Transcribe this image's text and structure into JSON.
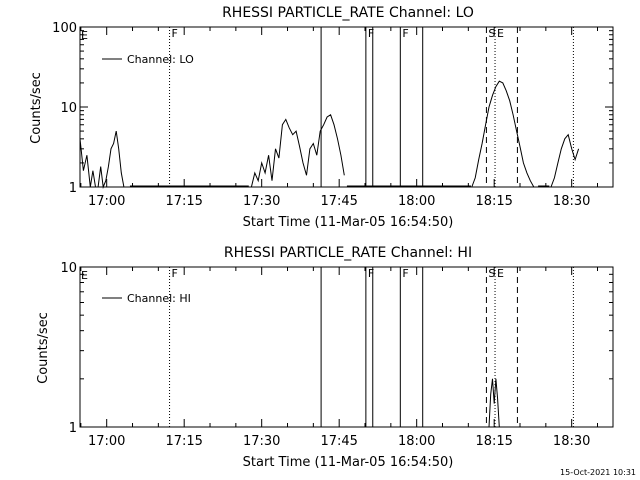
{
  "footer": {
    "timestamp": "15-Oct-2021 10:31"
  },
  "chart_data": [
    {
      "type": "line",
      "title": "RHESSI PARTICLE_RATE Channel: LO",
      "xlabel": "Start Time (11-Mar-05 16:54:50)",
      "ylabel": "Counts/sec",
      "yscale": "log",
      "ylim": [
        1,
        100
      ],
      "ytick_labels": [
        "1",
        "10",
        "100"
      ],
      "ytick_values": [
        1,
        10,
        100
      ],
      "xlim": [
        "16:54:50",
        "18:38:00"
      ],
      "xtick_labels": [
        "17:00",
        "17:15",
        "17:30",
        "17:45",
        "18:00",
        "18:15",
        "18:30"
      ],
      "xtick_values": [
        "17:00",
        "17:15",
        "17:30",
        "17:45",
        "18:00",
        "18:15",
        "18:30"
      ],
      "legend": {
        "label": "Channel: LO",
        "position": "top-left"
      },
      "series": [
        {
          "name": "Channel: LO",
          "x": [
            "16:54:50",
            "16:55:30",
            "16:56:10",
            "16:56:50",
            "16:57:20",
            "16:57:50",
            "16:58:20",
            "16:58:50",
            "16:59:20",
            "16:59:50",
            "17:00:20",
            "17:00:50",
            "17:01:20",
            "17:01:50",
            "17:02:20",
            "17:02:50",
            "17:03:20",
            "17:03:50",
            "17:04:30",
            "17:05:10",
            "17:05:50",
            "17:28:00",
            "17:28:40",
            "17:29:20",
            "17:30:00",
            "17:30:40",
            "17:31:20",
            "17:32:00",
            "17:32:40",
            "17:33:20",
            "17:34:00",
            "17:34:40",
            "17:35:20",
            "17:36:00",
            "17:36:40",
            "17:37:20",
            "17:38:00",
            "17:38:40",
            "17:39:20",
            "17:40:00",
            "17:40:40",
            "17:41:20",
            "17:42:00",
            "17:42:40",
            "17:43:20",
            "17:44:00",
            "17:44:40",
            "17:45:20",
            "17:46:00",
            "18:10:40",
            "18:11:20",
            "18:12:00",
            "18:12:40",
            "18:13:20",
            "18:14:00",
            "18:14:40",
            "18:15:20",
            "18:16:00",
            "18:16:40",
            "18:17:20",
            "18:18:00",
            "18:18:40",
            "18:19:20",
            "18:20:00",
            "18:20:40",
            "18:21:20",
            "18:22:00",
            "18:22:40",
            "18:23:20",
            "18:26:00",
            "18:26:40",
            "18:27:20",
            "18:28:00",
            "18:28:40",
            "18:29:20",
            "18:30:00",
            "18:30:40",
            "18:31:20"
          ],
          "y": [
            4,
            1.6,
            2.5,
            1,
            1.6,
            1,
            1,
            1.8,
            1,
            1.2,
            1.8,
            3,
            3.5,
            5,
            3,
            1.5,
            1,
            1,
            1,
            1,
            1,
            1,
            1.5,
            1.2,
            2,
            1.5,
            2.5,
            1.2,
            3,
            2.3,
            6,
            7,
            5.5,
            4.5,
            5,
            3.2,
            2,
            1.4,
            3,
            3.5,
            2.5,
            5,
            6,
            7.5,
            8,
            6,
            4,
            2.5,
            1.4,
            1,
            1.3,
            2.2,
            3.5,
            6,
            10,
            14,
            18,
            21,
            20,
            16,
            12,
            8,
            5,
            3.2,
            2,
            1.5,
            1.2,
            1,
            1,
            1,
            1.3,
            2,
            3,
            4,
            4.5,
            3,
            2.2,
            3
          ],
          "floor_segments": [
            [
              "17:04:30",
              "17:27:30"
            ],
            [
              "17:46:30",
              "18:10:30"
            ],
            [
              "18:23:30",
              "18:25:40"
            ]
          ]
        }
      ],
      "vertical_lines": [
        {
          "time": "17:12:10",
          "style": "dotted",
          "label": "F"
        },
        {
          "time": "17:41:30",
          "style": "solid",
          "label": ""
        },
        {
          "time": "17:50:10",
          "style": "solid",
          "label": "F"
        },
        {
          "time": "17:51:30",
          "style": "solid",
          "label": ""
        },
        {
          "time": "17:56:50",
          "style": "solid",
          "label": "F"
        },
        {
          "time": "18:01:10",
          "style": "solid",
          "label": ""
        },
        {
          "time": "18:13:30",
          "style": "dashed",
          "label": "S"
        },
        {
          "time": "18:15:10",
          "style": "dotted",
          "label": "E"
        },
        {
          "time": "18:19:30",
          "style": "dashed",
          "label": ""
        },
        {
          "time": "18:30:20",
          "style": "dotted",
          "label": ""
        }
      ],
      "start_marker": "E"
    },
    {
      "type": "line",
      "title": "RHESSI PARTICLE_RATE Channel: HI",
      "xlabel": "Start Time (11-Mar-05 16:54:50)",
      "ylabel": "Counts/sec",
      "yscale": "log",
      "ylim": [
        1,
        10
      ],
      "ytick_labels": [
        "1",
        "10"
      ],
      "ytick_values": [
        1,
        10
      ],
      "xlim": [
        "16:54:50",
        "18:38:00"
      ],
      "xtick_labels": [
        "17:00",
        "17:15",
        "17:30",
        "17:45",
        "18:00",
        "18:15",
        "18:30"
      ],
      "xtick_values": [
        "17:00",
        "17:15",
        "17:30",
        "17:45",
        "18:00",
        "18:15",
        "18:30"
      ],
      "legend": {
        "label": "Channel: HI",
        "position": "top-left"
      },
      "series": [
        {
          "name": "Channel: HI",
          "x": [
            "18:14:00",
            "18:14:20",
            "18:14:40",
            "18:15:00",
            "18:15:20",
            "18:15:40",
            "18:16:00"
          ],
          "y": [
            1,
            1.6,
            2,
            1.4,
            2,
            1.5,
            1
          ],
          "floor_segments": []
        }
      ],
      "vertical_lines": [
        {
          "time": "17:12:10",
          "style": "dotted",
          "label": "F"
        },
        {
          "time": "17:41:30",
          "style": "solid",
          "label": ""
        },
        {
          "time": "17:50:10",
          "style": "solid",
          "label": "F"
        },
        {
          "time": "17:51:30",
          "style": "solid",
          "label": ""
        },
        {
          "time": "17:56:50",
          "style": "solid",
          "label": "F"
        },
        {
          "time": "18:01:10",
          "style": "solid",
          "label": ""
        },
        {
          "time": "18:13:30",
          "style": "dashed",
          "label": "S"
        },
        {
          "time": "18:15:10",
          "style": "dotted",
          "label": "E"
        },
        {
          "time": "18:19:30",
          "style": "dashed",
          "label": ""
        },
        {
          "time": "18:30:20",
          "style": "dotted",
          "label": ""
        }
      ],
      "start_marker": "E"
    }
  ]
}
